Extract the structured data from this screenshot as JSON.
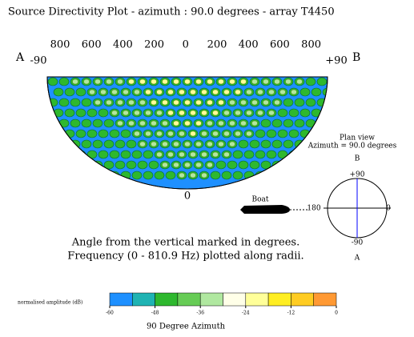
{
  "title": "Source Directivity Plot - azimuth : 90.0 degrees - array T4450",
  "radial_tick_labels": [
    "800",
    "600",
    "400",
    "200",
    "0",
    "200",
    "400",
    "600",
    "800"
  ],
  "angle_labels": {
    "left": "-90",
    "right": "+90",
    "bottom": "0"
  },
  "side_labels": {
    "left": "A",
    "right": "B"
  },
  "plan_view": {
    "title": "Plan view",
    "azimuth": "Azimuth =  90.0 degrees",
    "top_letter": "B",
    "top": "+90",
    "left": "180",
    "right": "0",
    "bottom": "-90",
    "bottom_letter": "A",
    "boat": "Boat"
  },
  "caption": [
    "Angle from the vertical marked in degrees.",
    "Frequency (0 - 810.9 Hz) plotted along radii."
  ],
  "colorbar": {
    "label": "normalised amplitude (dB)",
    "lim": [
      -60,
      0
    ],
    "ticks": [
      -60,
      -48,
      -36,
      -24,
      -12,
      0
    ],
    "colors": [
      "#1e90ff",
      "#1fb3b3",
      "#2eb82e",
      "#66cc55",
      "#b0e8a0",
      "#ffffe8",
      "#ffff99",
      "#ffee22",
      "#ffcc22",
      "#ff9933"
    ],
    "title": "90 Degree Azimuth"
  }
}
